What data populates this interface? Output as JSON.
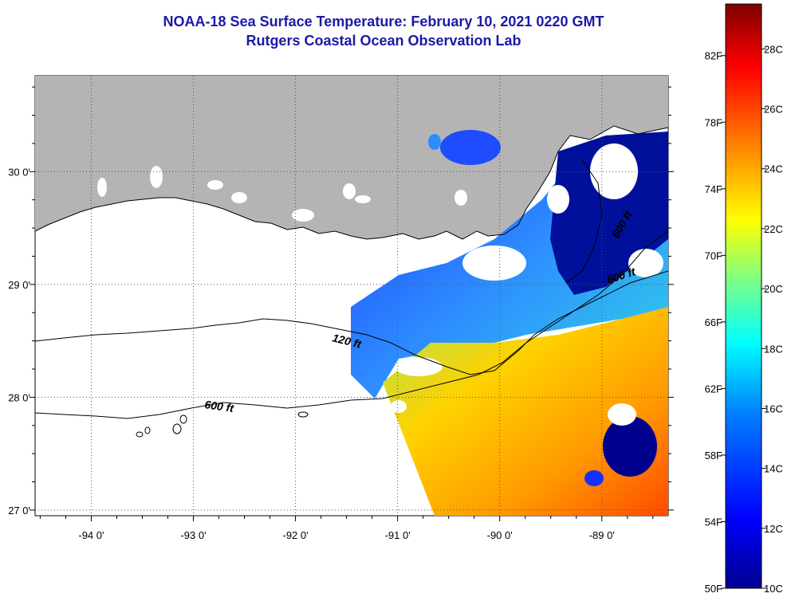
{
  "title": {
    "line1": "NOAA-18 Sea Surface Temperature:  February 10, 2021 0220 GMT",
    "line2": "Rutgers Coastal Ocean Observation Lab"
  },
  "map": {
    "lon_range": [
      -94.55,
      -88.35
    ],
    "lat_range": [
      26.95,
      30.85
    ],
    "lon_ticks": [
      -94,
      -93,
      -92,
      -91,
      -90,
      -89
    ],
    "lat_ticks": [
      27,
      28,
      29,
      30
    ],
    "lon_labels": [
      "-94 0'",
      "-93 0'",
      "-92 0'",
      "-91 0'",
      "-90 0'",
      "-89 0'"
    ],
    "lat_labels": [
      "27 0'",
      "28 0'",
      "29 0'",
      "30 0'"
    ],
    "contours": [
      {
        "label": "120 ft"
      },
      {
        "label": "600 ft"
      },
      {
        "label": "600 ft"
      },
      {
        "label": "600 ft"
      }
    ],
    "colors": {
      "land": "#b4b4b4",
      "no_data": "#ffffff",
      "grid": "#555555"
    }
  },
  "colorbar": {
    "fahrenheit_labels": [
      "82F",
      "78F",
      "74F",
      "70F",
      "66F",
      "62F",
      "58F",
      "54F",
      "50F"
    ],
    "fahrenheit_values": [
      82,
      78,
      74,
      70,
      66,
      62,
      58,
      54,
      50
    ],
    "celsius_labels": [
      "28C",
      "26C",
      "24C",
      "22C",
      "20C",
      "18C",
      "16C",
      "14C",
      "12C",
      "10C"
    ],
    "celsius_values": [
      28,
      26,
      24,
      22,
      20,
      18,
      16,
      14,
      12,
      10
    ],
    "range_c": [
      10,
      29.5
    ],
    "colormap": [
      "#00008f",
      "#0000ff",
      "#0080ff",
      "#00ffff",
      "#80ff80",
      "#ffff00",
      "#ff8000",
      "#ff0000",
      "#800000"
    ]
  }
}
